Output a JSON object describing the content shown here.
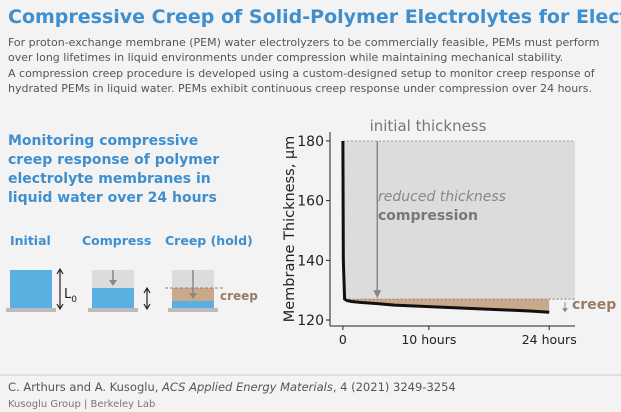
{
  "header": {
    "title": "Compressive Creep of Solid-Polymer Electrolytes for Electrolyzers",
    "intro": [
      "For proton-exchange membrane (PEM) water electrolyzers to be commercially feasible, PEMs must perform",
      "over long lifetimes in liquid environments under compression while maintaining mechanical stability.",
      "A compression creep procedure is developed using a custom-designed setup to monitor creep response of",
      "hydrated PEMs in liquid water. PEMs exhibit continuous creep response under compression over 24 hours."
    ]
  },
  "panel": {
    "heading": [
      "Monitoring compressive",
      "creep response of polymer",
      "electrolyte membranes in",
      "liquid water over 24 hours"
    ],
    "steps": [
      "Initial",
      "Compress",
      "Creep (hold)"
    ],
    "length_symbol": "L",
    "length_subscript": "0",
    "creep_label": "creep"
  },
  "chart_data": {
    "type": "line",
    "y_label": "Membrane Thickness, µm",
    "annotations": [
      "initial thickness",
      "reduced thickness",
      "compression",
      "creep"
    ],
    "x": [
      0,
      0.05,
      0.2,
      0.5,
      1,
      2,
      4,
      6,
      10,
      14,
      18,
      22,
      24
    ],
    "values": [
      180,
      140,
      127,
      126.5,
      126.2,
      125.9,
      125.5,
      125,
      124.5,
      124,
      123.5,
      123,
      122.6
    ],
    "color": "#111111",
    "xlim": [
      -1.5,
      27
    ],
    "ylim": [
      118,
      183
    ],
    "xticks": [
      0,
      {
        "value": 10,
        "label": "10 hours"
      },
      {
        "value": 24,
        "label": "24 hours"
      }
    ],
    "yticks": [
      120,
      140,
      160,
      180
    ]
  },
  "footer": {
    "citation_authors": "C. Arthurs and A. Kusoglu, ",
    "citation_journal": "ACS Applied Energy Materials",
    "citation_rest": ", 4 (2021) 3249-3254",
    "group": "Kusoglu Group | Berkeley Lab"
  }
}
